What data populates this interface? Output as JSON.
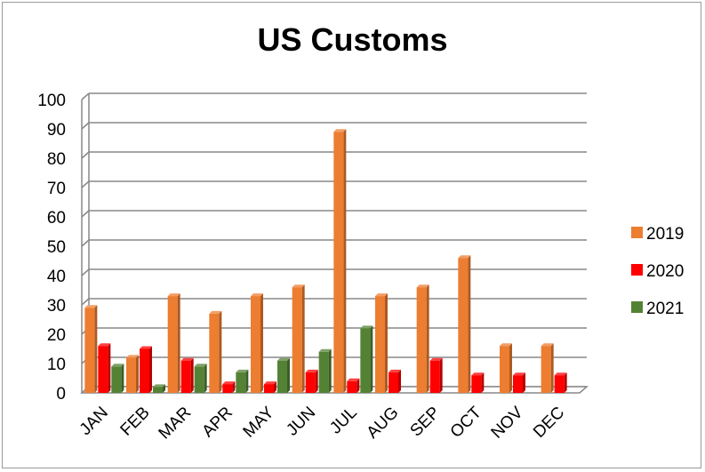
{
  "chart_data": {
    "type": "bar",
    "title": "US Customs",
    "xlabel": "",
    "ylabel": "",
    "ylim": [
      0,
      100
    ],
    "yticks": [
      "0",
      "10",
      "20",
      "30",
      "40",
      "50",
      "60",
      "70",
      "80",
      "90",
      "100"
    ],
    "categories": [
      "JAN",
      "FEB",
      "MAR",
      "APR",
      "MAY",
      "JUN",
      "JUL",
      "AUG",
      "SEP",
      "OCT",
      "NOV",
      "DEC"
    ],
    "series": [
      {
        "name": "2019",
        "color": "#ED7D31",
        "values": [
          29,
          12,
          33,
          27,
          33,
          36,
          89,
          33,
          36,
          46,
          16,
          16
        ]
      },
      {
        "name": "2020",
        "color": "#FF0000",
        "values": [
          16,
          15,
          11,
          3,
          3,
          7,
          4,
          7,
          11,
          6,
          6,
          6
        ]
      },
      {
        "name": "2021",
        "color": "#548235",
        "values": [
          9,
          2,
          9,
          7,
          11,
          14,
          22,
          null,
          null,
          null,
          null,
          null
        ]
      }
    ],
    "grid": true,
    "legend": "right"
  }
}
